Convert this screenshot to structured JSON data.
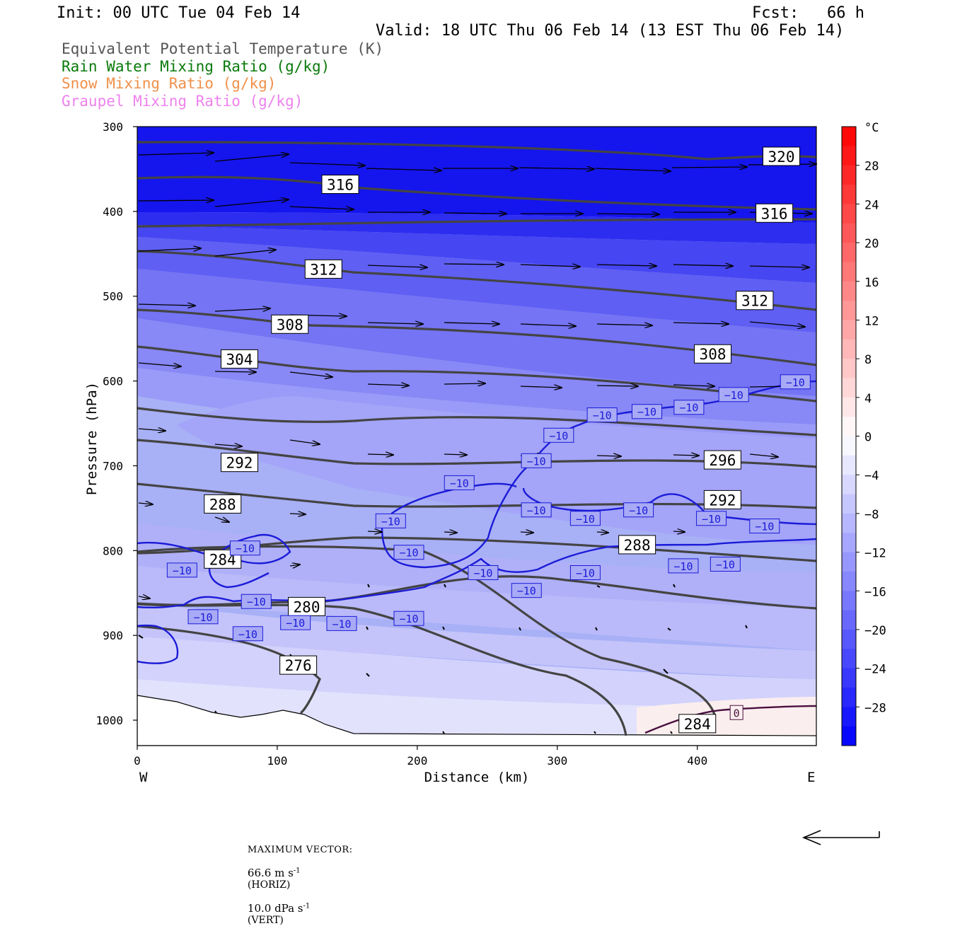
{
  "header": {
    "init": "Init: 00 UTC Tue 04 Feb 14",
    "fcst": "Fcst:   66 h",
    "valid": "Valid: 18 UTC Thu 06 Feb 14 (13 EST Thu 06 Feb 14)"
  },
  "legend": [
    {
      "label": "Equivalent Potential Temperature (K)",
      "color": "#555555"
    },
    {
      "label": "Rain Water Mixing Ratio (g/kg)",
      "color": "#0a7a0a"
    },
    {
      "label": "Snow Mixing Ratio (g/kg)",
      "color": "#f0904a"
    },
    {
      "label": "Graupel Mixing Ratio (g/kg)",
      "color": "#ee82ee"
    }
  ],
  "chart_data": {
    "type": "heatmap",
    "xlabel": "Distance (km)",
    "ylabel": "Pressure (hPa)",
    "xlim": [
      0,
      485
    ],
    "ylim": [
      1030,
      300
    ],
    "x_ticks": [
      "0",
      "100",
      "200",
      "300",
      "400"
    ],
    "y_ticks": [
      "300",
      "400",
      "500",
      "600",
      "700",
      "800",
      "900",
      "1000"
    ],
    "direction_labels": {
      "left": "W",
      "right": "E"
    },
    "colorbar": {
      "unit": "°C",
      "tick_labels": [
        "28",
        "24",
        "20",
        "16",
        "12",
        "8",
        "4",
        "0",
        "−4",
        "−8",
        "−12",
        "−16",
        "−20",
        "−24",
        "−28"
      ],
      "tick_values": [
        28,
        24,
        20,
        16,
        12,
        8,
        4,
        0,
        -4,
        -8,
        -12,
        -16,
        -20,
        -24,
        -28
      ]
    },
    "theta_e_labels": [
      {
        "text": "320",
        "x": 460,
        "p": 335
      },
      {
        "text": "316",
        "x": 145,
        "p": 368
      },
      {
        "text": "316",
        "x": 455,
        "p": 402
      },
      {
        "text": "312",
        "x": 133,
        "p": 468
      },
      {
        "text": "312",
        "x": 441,
        "p": 505
      },
      {
        "text": "308",
        "x": 109,
        "p": 533
      },
      {
        "text": "308",
        "x": 411,
        "p": 568
      },
      {
        "text": "304",
        "x": 73,
        "p": 574
      },
      {
        "text": "296",
        "x": 418,
        "p": 693
      },
      {
        "text": "292",
        "x": 73,
        "p": 696
      },
      {
        "text": "292",
        "x": 418,
        "p": 740
      },
      {
        "text": "288",
        "x": 61,
        "p": 745
      },
      {
        "text": "288",
        "x": 357,
        "p": 793
      },
      {
        "text": "284",
        "x": 61,
        "p": 810
      },
      {
        "text": "280",
        "x": 121,
        "p": 866
      },
      {
        "text": "276",
        "x": 115,
        "p": 935
      },
      {
        "text": "284",
        "x": 400,
        "p": 1004
      }
    ],
    "temp_labels": [
      {
        "text": "−10",
        "x": 470,
        "p": 601
      },
      {
        "text": "−10",
        "x": 426,
        "p": 616
      },
      {
        "text": "−10",
        "x": 394,
        "p": 631
      },
      {
        "text": "−10",
        "x": 364,
        "p": 636
      },
      {
        "text": "−10",
        "x": 332,
        "p": 640
      },
      {
        "text": "−10",
        "x": 301,
        "p": 664
      },
      {
        "text": "−10",
        "x": 285,
        "p": 694
      },
      {
        "text": "−10",
        "x": 230,
        "p": 720
      },
      {
        "text": "−10",
        "x": 285,
        "p": 752
      },
      {
        "text": "−10",
        "x": 358,
        "p": 752
      },
      {
        "text": "−10",
        "x": 320,
        "p": 762
      },
      {
        "text": "−10",
        "x": 410,
        "p": 762
      },
      {
        "text": "−10",
        "x": 448,
        "p": 771
      },
      {
        "text": "−10",
        "x": 181,
        "p": 765
      },
      {
        "text": "−10",
        "x": 77,
        "p": 797
      },
      {
        "text": "−10",
        "x": 194,
        "p": 802
      },
      {
        "text": "−10",
        "x": 390,
        "p": 818
      },
      {
        "text": "−10",
        "x": 420,
        "p": 816
      },
      {
        "text": "−10",
        "x": 32,
        "p": 823
      },
      {
        "text": "−10",
        "x": 247,
        "p": 826
      },
      {
        "text": "−10",
        "x": 320,
        "p": 826
      },
      {
        "text": "−10",
        "x": 278,
        "p": 847
      },
      {
        "text": "−10",
        "x": 85,
        "p": 860
      },
      {
        "text": "−10",
        "x": 47,
        "p": 878
      },
      {
        "text": "−10",
        "x": 194,
        "p": 880
      },
      {
        "text": "−10",
        "x": 146,
        "p": 886
      },
      {
        "text": "−10",
        "x": 113,
        "p": 885
      },
      {
        "text": "−10",
        "x": 79,
        "p": 898
      }
    ],
    "rain_labels": [
      {
        "text": "0",
        "x": 428,
        "p": 991
      }
    ]
  },
  "footer": {
    "max_vector_label": "MAXIMUM VECTOR:",
    "horiz_value": "66.6 m s",
    "horiz_exp": "-1",
    "horiz_tag": "(HORIZ)",
    "vert_value": "10.0 dPa s",
    "vert_exp": "-1",
    "vert_tag": "(VERT)"
  }
}
